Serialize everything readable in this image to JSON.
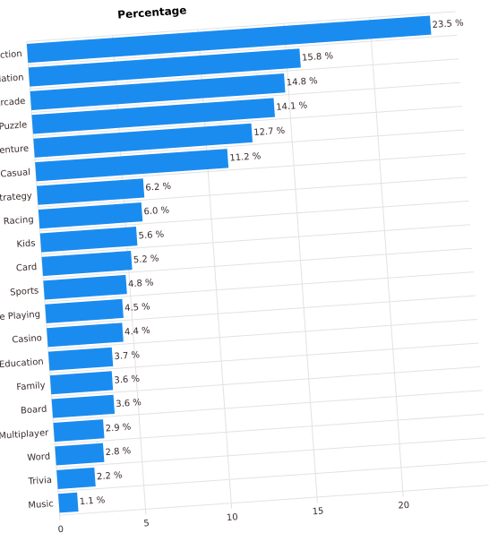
{
  "chart_data": {
    "type": "bar",
    "orientation": "horizontal",
    "title": "Percentage",
    "categories": [
      "Action",
      "Simulation",
      "Arcade",
      "Puzzle",
      "Adventure",
      "Casual",
      "Strategy",
      "Racing",
      "Kids",
      "Card",
      "Sports",
      "Role Playing",
      "Casino",
      "Education",
      "Family",
      "Board",
      "Multiplayer",
      "Word",
      "Trivia",
      "Music"
    ],
    "values": [
      23.5,
      15.8,
      14.8,
      14.1,
      12.7,
      11.2,
      6.2,
      6.0,
      5.6,
      5.2,
      4.8,
      4.5,
      4.4,
      3.7,
      3.6,
      3.6,
      2.9,
      2.8,
      2.2,
      1.1
    ],
    "value_labels": [
      "23.5 %",
      "15.8 %",
      "14.8 %",
      "14.1 %",
      "12.7 %",
      "11.2 %",
      "6.2 %",
      "6.0 %",
      "5.6 %",
      "5.2 %",
      "4.8 %",
      "4.5 %",
      "4.4 %",
      "3.7 %",
      "3.6 %",
      "3.6 %",
      "2.9 %",
      "2.8 %",
      "2.2 %",
      "1.1 %"
    ],
    "color": "#1a8cf0",
    "xlim": [
      0,
      25
    ],
    "xticks": [
      0,
      5,
      10,
      15,
      20
    ],
    "grid": true
  }
}
